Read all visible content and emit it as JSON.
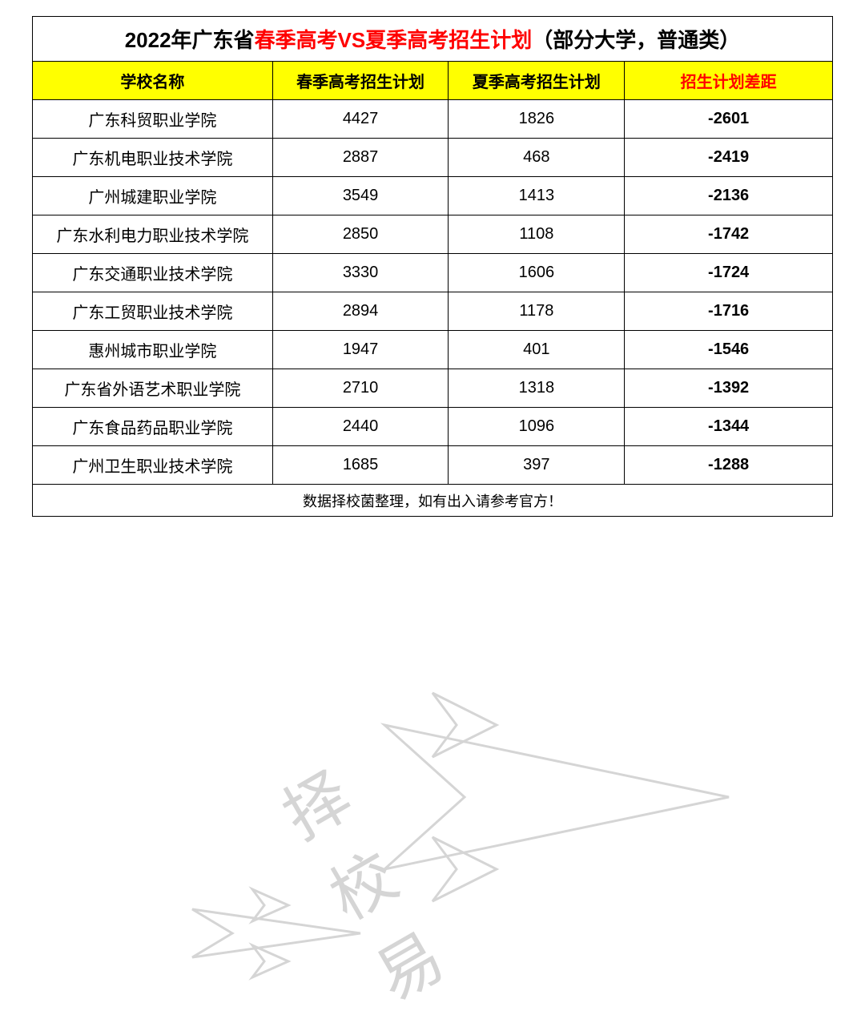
{
  "title": {
    "part1": "2022年广东省",
    "part2_red": "春季高考VS夏季高考招生计划",
    "part3": "（部分大学，普通类）"
  },
  "headers": {
    "school": "学校名称",
    "spring": "春季高考招生计划",
    "summer": "夏季高考招生计划",
    "diff": "招生计划差距"
  },
  "column_widths": {
    "school": "30%",
    "spring": "22%",
    "summer": "22%",
    "diff": "26%"
  },
  "rows": [
    {
      "school": "广东科贸职业学院",
      "spring": "4427",
      "summer": "1826",
      "diff": "-2601"
    },
    {
      "school": "广东机电职业技术学院",
      "spring": "2887",
      "summer": "468",
      "diff": "-2419"
    },
    {
      "school": "广州城建职业学院",
      "spring": "3549",
      "summer": "1413",
      "diff": "-2136"
    },
    {
      "school": "广东水利电力职业技术学院",
      "spring": "2850",
      "summer": "1108",
      "diff": "-1742"
    },
    {
      "school": "广东交通职业技术学院",
      "spring": "3330",
      "summer": "1606",
      "diff": "-1724"
    },
    {
      "school": "广东工贸职业技术学院",
      "spring": "2894",
      "summer": "1178",
      "diff": "-1716"
    },
    {
      "school": "惠州城市职业学院",
      "spring": "1947",
      "summer": "401",
      "diff": "-1546"
    },
    {
      "school": "广东省外语艺术职业学院",
      "spring": "2710",
      "summer": "1318",
      "diff": "-1392"
    },
    {
      "school": "广东食品药品职业学院",
      "spring": "2440",
      "summer": "1096",
      "diff": "-1344"
    },
    {
      "school": "广州卫生职业技术学院",
      "spring": "1685",
      "summer": "397",
      "diff": "-1288"
    }
  ],
  "footer": "数据择校菌整理，如有出入请参考官方！",
  "watermark_text": "择校易",
  "colors": {
    "header_bg": "#ffff00",
    "border": "#000000",
    "text_black": "#000000",
    "text_red": "#ff0000",
    "diff_red": "#ff0000",
    "watermark": "#888888",
    "bg": "#ffffff"
  },
  "table_type": "table",
  "fontsize": {
    "title": 26,
    "header": 20,
    "data": 20,
    "footer": 18,
    "watermark": 80
  }
}
